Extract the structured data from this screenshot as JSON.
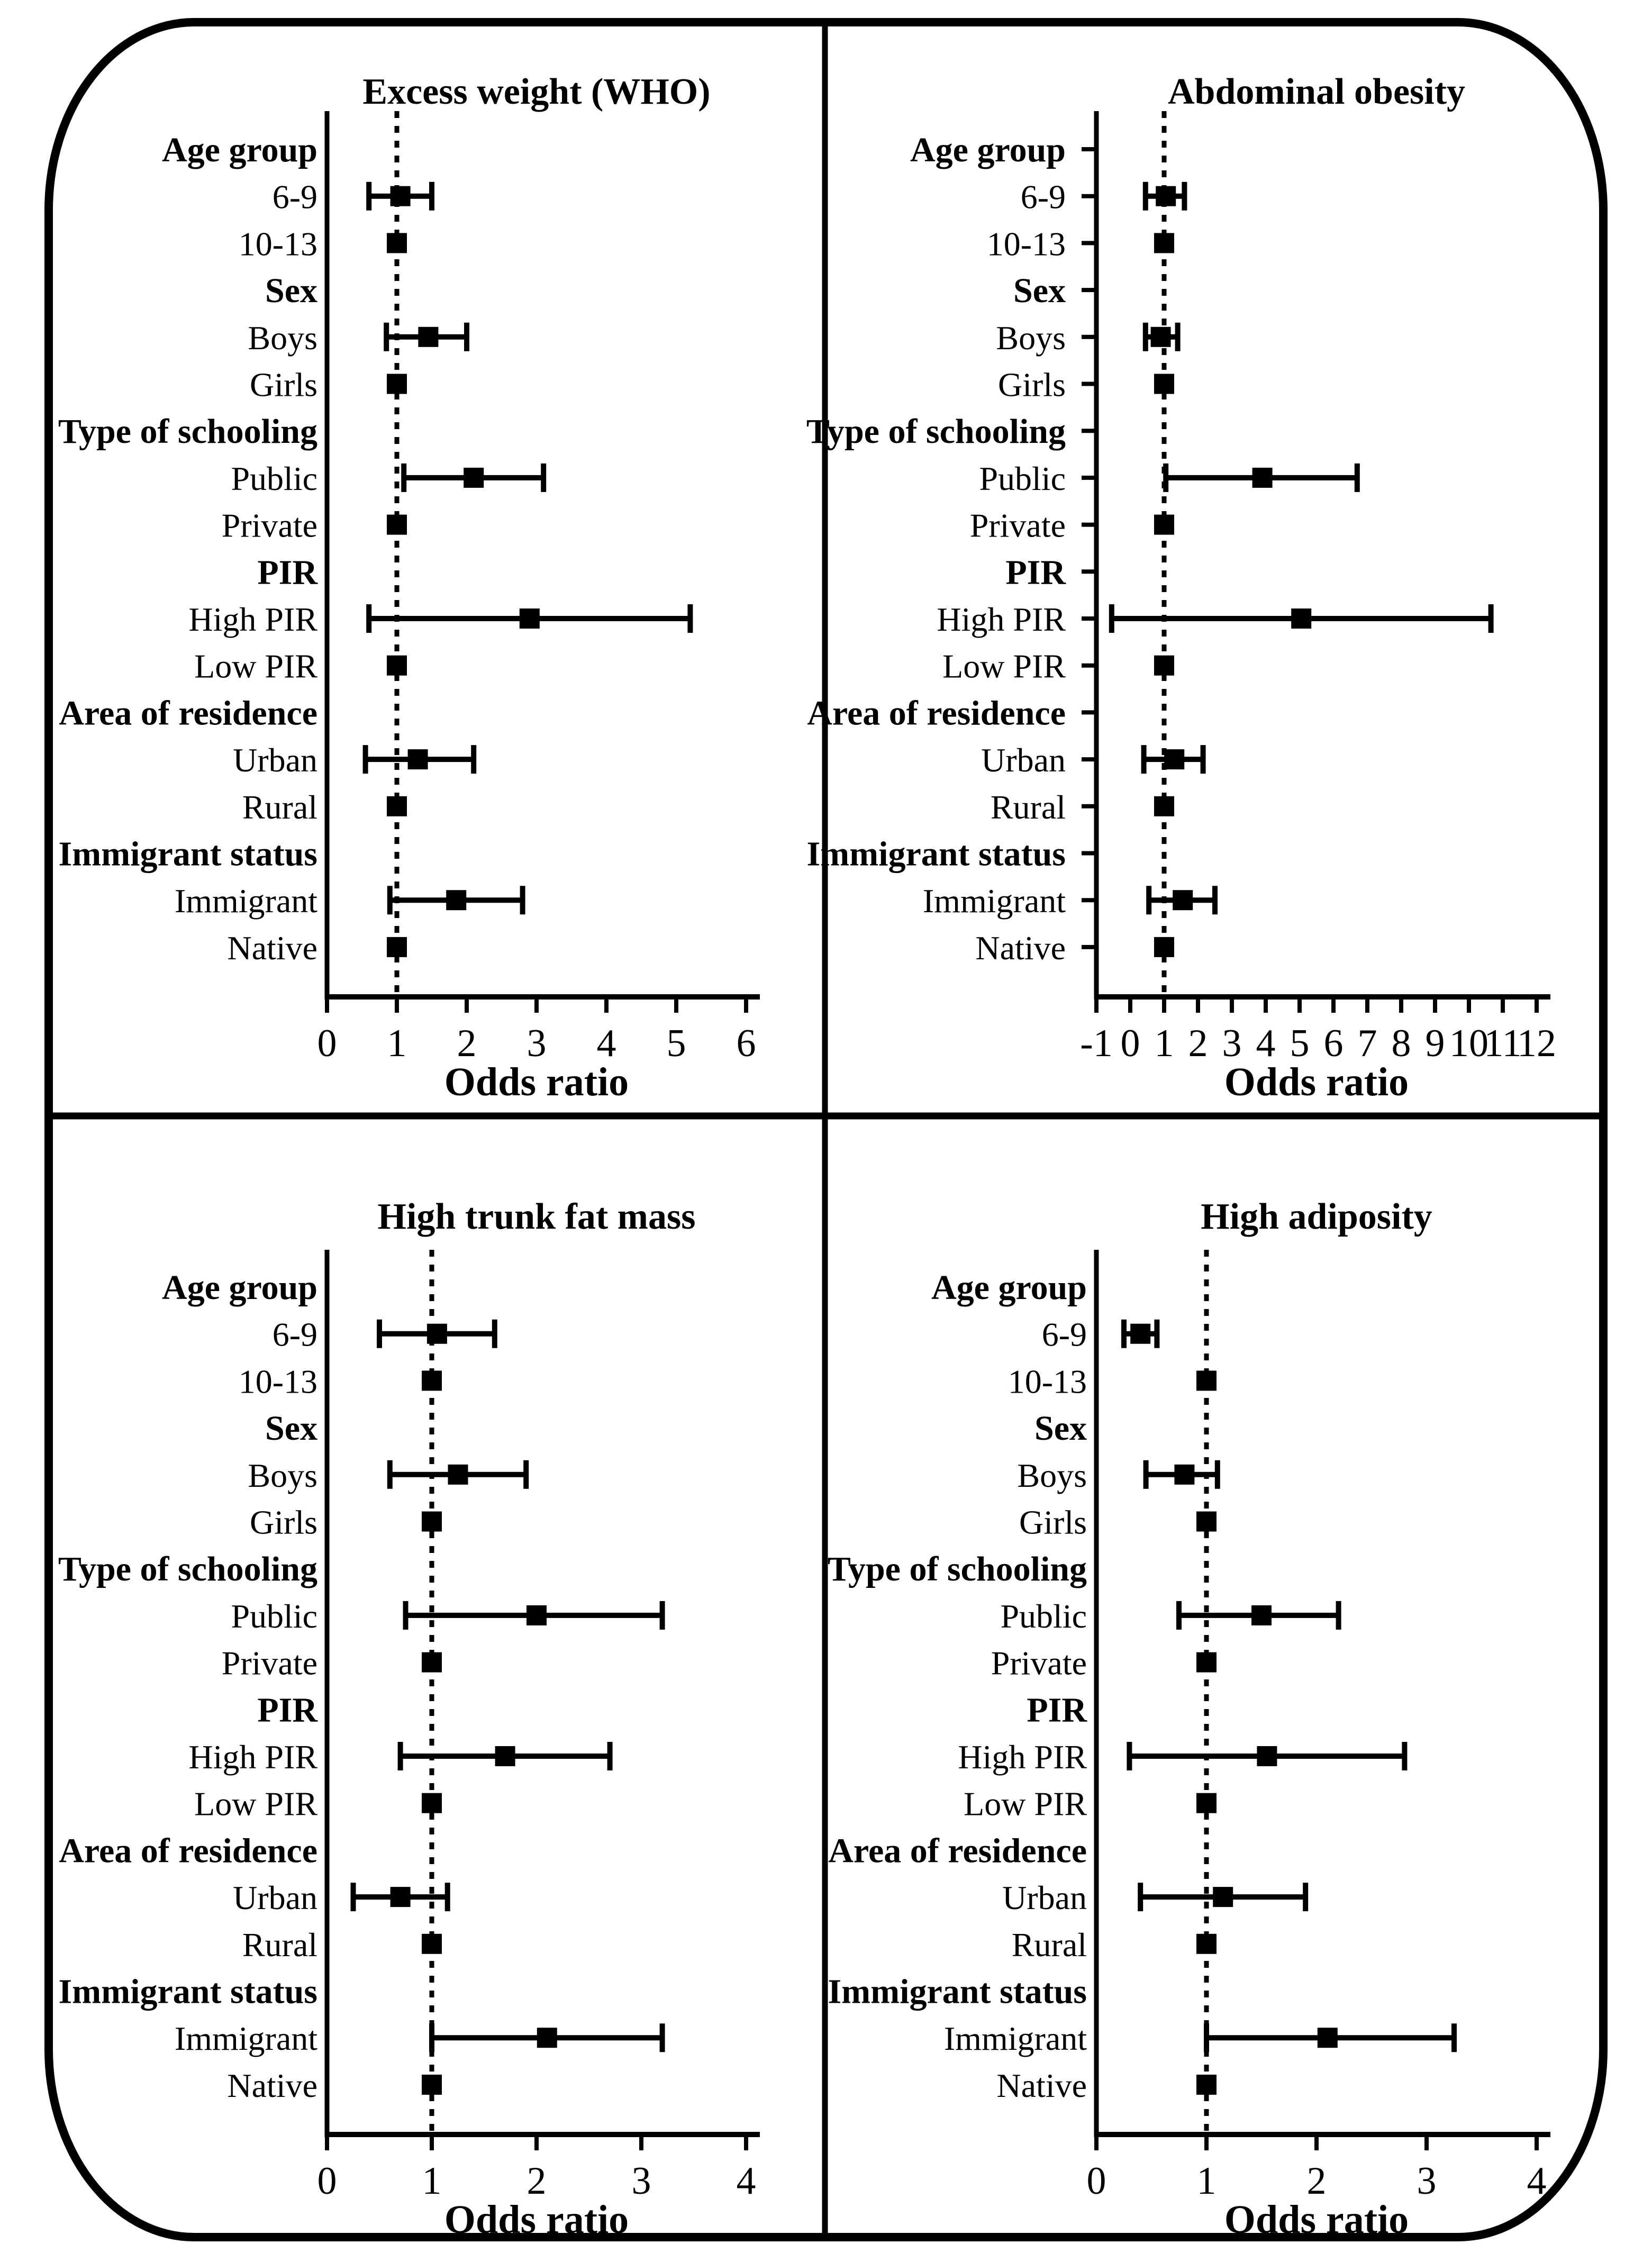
{
  "figure": {
    "background": "#ffffff",
    "line_color": "#000000",
    "marker_color": "#000000",
    "marker_shape": "square",
    "reference_line_value": 1
  },
  "chart_data": [
    {
      "type": "forest",
      "title": "Excess weight (WHO)",
      "xlabel": "Odds ratio",
      "xlim": [
        0,
        6
      ],
      "xticks": [
        0,
        1,
        2,
        3,
        4,
        5,
        6
      ],
      "ref_line": 1,
      "y_axis_row_ticks": false,
      "legend": "none",
      "grid": false,
      "rows": [
        {
          "label": "Age group",
          "header": true
        },
        {
          "label": "6-9",
          "or": 1.05,
          "lo": 0.6,
          "hi": 1.5
        },
        {
          "label": "10-13",
          "or": 1.0,
          "ref": true
        },
        {
          "label": "Sex",
          "header": true
        },
        {
          "label": "Boys",
          "or": 1.45,
          "lo": 0.85,
          "hi": 2.0
        },
        {
          "label": "Girls",
          "or": 1.0,
          "ref": true
        },
        {
          "label": "Type of schooling",
          "header": true
        },
        {
          "label": "Public",
          "or": 2.1,
          "lo": 1.1,
          "hi": 3.1
        },
        {
          "label": "Private",
          "or": 1.0,
          "ref": true
        },
        {
          "label": "PIR",
          "header": true
        },
        {
          "label": "High PIR",
          "or": 2.9,
          "lo": 0.6,
          "hi": 5.2
        },
        {
          "label": "Low PIR",
          "or": 1.0,
          "ref": true
        },
        {
          "label": "Area of residence",
          "header": true
        },
        {
          "label": "Urban",
          "or": 1.3,
          "lo": 0.55,
          "hi": 2.1
        },
        {
          "label": "Rural",
          "or": 1.0,
          "ref": true
        },
        {
          "label": "Immigrant status",
          "header": true
        },
        {
          "label": "Immigrant",
          "or": 1.85,
          "lo": 0.9,
          "hi": 2.8
        },
        {
          "label": "Native",
          "or": 1.0,
          "ref": true
        }
      ]
    },
    {
      "type": "forest",
      "title": "Abdominal obesity",
      "xlabel": "Odds ratio",
      "xlim": [
        -1,
        12
      ],
      "xticks": [
        -1,
        0,
        1,
        2,
        3,
        4,
        5,
        6,
        7,
        8,
        9,
        10,
        11,
        12
      ],
      "ref_line": 1,
      "y_axis_row_ticks": true,
      "legend": "none",
      "grid": false,
      "rows": [
        {
          "label": "Age group",
          "header": true
        },
        {
          "label": "6-9",
          "or": 1.05,
          "lo": 0.45,
          "hi": 1.6
        },
        {
          "label": "10-13",
          "or": 1.0,
          "ref": true
        },
        {
          "label": "Sex",
          "header": true
        },
        {
          "label": "Boys",
          "or": 0.9,
          "lo": 0.45,
          "hi": 1.4
        },
        {
          "label": "Girls",
          "or": 1.0,
          "ref": true
        },
        {
          "label": "Type of schooling",
          "header": true
        },
        {
          "label": "Public",
          "or": 3.9,
          "lo": 1.05,
          "hi": 6.7
        },
        {
          "label": "Private",
          "or": 1.0,
          "ref": true
        },
        {
          "label": "PIR",
          "header": true
        },
        {
          "label": "High PIR",
          "or": 5.05,
          "lo": -0.55,
          "hi": 10.65
        },
        {
          "label": "Low PIR",
          "or": 1.0,
          "ref": true
        },
        {
          "label": "Area of residence",
          "header": true
        },
        {
          "label": "Urban",
          "or": 1.3,
          "lo": 0.4,
          "hi": 2.15
        },
        {
          "label": "Rural",
          "or": 1.0,
          "ref": true
        },
        {
          "label": "Immigrant status",
          "header": true
        },
        {
          "label": "Immigrant",
          "or": 1.55,
          "lo": 0.55,
          "hi": 2.5
        },
        {
          "label": "Native",
          "or": 1.0,
          "ref": true
        }
      ]
    },
    {
      "type": "forest",
      "title": "High trunk fat mass",
      "xlabel": "Odds ratio",
      "xlim": [
        0,
        4
      ],
      "xticks": [
        0,
        1,
        2,
        3,
        4
      ],
      "ref_line": 1,
      "y_axis_row_ticks": false,
      "legend": "none",
      "grid": false,
      "rows": [
        {
          "label": "Age group",
          "header": true
        },
        {
          "label": "6-9",
          "or": 1.05,
          "lo": 0.5,
          "hi": 1.6
        },
        {
          "label": "10-13",
          "or": 1.0,
          "ref": true
        },
        {
          "label": "Sex",
          "header": true
        },
        {
          "label": "Boys",
          "or": 1.25,
          "lo": 0.6,
          "hi": 1.9
        },
        {
          "label": "Girls",
          "or": 1.0,
          "ref": true
        },
        {
          "label": "Type of schooling",
          "header": true
        },
        {
          "label": "Public",
          "or": 2.0,
          "lo": 0.75,
          "hi": 3.2
        },
        {
          "label": "Private",
          "or": 1.0,
          "ref": true
        },
        {
          "label": "PIR",
          "header": true
        },
        {
          "label": "High PIR",
          "or": 1.7,
          "lo": 0.7,
          "hi": 2.7
        },
        {
          "label": "Low PIR",
          "or": 1.0,
          "ref": true
        },
        {
          "label": "Area of residence",
          "header": true
        },
        {
          "label": "Urban",
          "or": 0.7,
          "lo": 0.25,
          "hi": 1.15
        },
        {
          "label": "Rural",
          "or": 1.0,
          "ref": true
        },
        {
          "label": "Immigrant status",
          "header": true
        },
        {
          "label": "Immigrant",
          "or": 2.1,
          "lo": 1.0,
          "hi": 3.2
        },
        {
          "label": "Native",
          "or": 1.0,
          "ref": true
        }
      ]
    },
    {
      "type": "forest",
      "title": "High adiposity",
      "xlabel": "Odds ratio",
      "xlim": [
        0,
        4
      ],
      "xticks": [
        0,
        1,
        2,
        3,
        4
      ],
      "ref_line": 1,
      "y_axis_row_ticks": false,
      "legend": "none",
      "grid": false,
      "rows": [
        {
          "label": "Age group",
          "header": true
        },
        {
          "label": "6-9",
          "or": 0.4,
          "lo": 0.25,
          "hi": 0.55
        },
        {
          "label": "10-13",
          "or": 1.0,
          "ref": true
        },
        {
          "label": "Sex",
          "header": true
        },
        {
          "label": "Boys",
          "or": 0.8,
          "lo": 0.45,
          "hi": 1.1
        },
        {
          "label": "Girls",
          "or": 1.0,
          "ref": true
        },
        {
          "label": "Type of schooling",
          "header": true
        },
        {
          "label": "Public",
          "or": 1.5,
          "lo": 0.75,
          "hi": 2.2
        },
        {
          "label": "Private",
          "or": 1.0,
          "ref": true
        },
        {
          "label": "PIR",
          "header": true
        },
        {
          "label": "High PIR",
          "or": 1.55,
          "lo": 0.3,
          "hi": 2.8
        },
        {
          "label": "Low PIR",
          "or": 1.0,
          "ref": true
        },
        {
          "label": "Area of residence",
          "header": true
        },
        {
          "label": "Urban",
          "or": 1.15,
          "lo": 0.4,
          "hi": 1.9
        },
        {
          "label": "Rural",
          "or": 1.0,
          "ref": true
        },
        {
          "label": "Immigrant status",
          "header": true
        },
        {
          "label": "Immigrant",
          "or": 2.1,
          "lo": 1.0,
          "hi": 3.25
        },
        {
          "label": "Native",
          "or": 1.0,
          "ref": true
        }
      ]
    }
  ]
}
